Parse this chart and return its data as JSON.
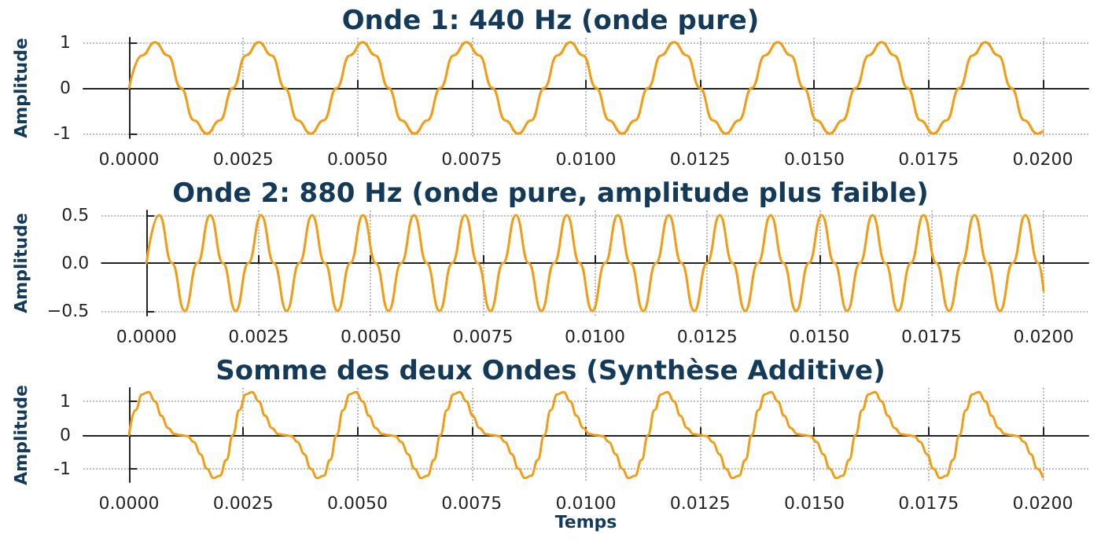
{
  "chart_data": [
    {
      "type": "line",
      "title": "Onde 1: 440 Hz (onde pure)",
      "ylabel": "Amplitude",
      "xlim": [
        -0.001,
        0.021
      ],
      "ylim": [
        -1.1,
        1.1
      ],
      "yticks": [
        -1,
        0,
        1
      ],
      "xticks": [
        {
          "value": 0,
          "label": "0.0000"
        },
        {
          "value": 0.0025,
          "label": "0.0025"
        },
        {
          "value": 0.005,
          "label": "0.0050"
        },
        {
          "value": 0.0075,
          "label": "0.0075"
        },
        {
          "value": 0.01,
          "label": "0.0100"
        },
        {
          "value": 0.0125,
          "label": "0.0125"
        },
        {
          "value": 0.015,
          "label": "0.0150"
        },
        {
          "value": 0.0175,
          "label": "0.0175"
        },
        {
          "value": 0.02,
          "label": "0.0200"
        }
      ],
      "grid": true,
      "marker": "none",
      "line_style": "solid",
      "x": [
        0,
        0.000284,
        0.000568,
        0.000852,
        0.001136,
        0.00142,
        0.001704,
        0.001988,
        0.002272,
        0.002556,
        0.00284,
        0.003124,
        0.003408,
        0.003692,
        0.003976,
        0.00426,
        0.004544,
        0.004828,
        0.005112,
        0.005396,
        0.00568,
        0.005964,
        0.006248,
        0.006532,
        0.006816,
        0.0071,
        0.007384,
        0.007668,
        0.007952,
        0.008236,
        0.00852,
        0.008804,
        0.009088,
        0.009372,
        0.009656,
        0.00994,
        0.010224,
        0.010508,
        0.010792,
        0.011076,
        0.01136,
        0.011644,
        0.011928,
        0.012212,
        0.012496,
        0.01278,
        0.013064,
        0.013348,
        0.013632,
        0.013916,
        0.0142,
        0.014484,
        0.014768,
        0.015052,
        0.015336,
        0.01562,
        0.015904,
        0.016188,
        0.016472,
        0.016756,
        0.01704,
        0.017324,
        0.017608,
        0.017892,
        0.018176,
        0.01846,
        0.018744,
        0.019028,
        0.019312,
        0.019596,
        0.01988,
        0.02
      ],
      "series": [
        {
          "color": "#f39c12",
          "values": [
            0,
            0.71,
            1,
            0.71,
            0,
            -0.71,
            -1,
            -0.71,
            0,
            0.71,
            1,
            0.71,
            0,
            -0.71,
            -1,
            -0.71,
            0,
            0.71,
            1,
            0.71,
            0,
            -0.71,
            -1,
            -0.71,
            0,
            0.71,
            1,
            0.71,
            0,
            -0.71,
            -1,
            -0.71,
            0,
            0.71,
            1,
            0.71,
            0,
            -0.71,
            -1,
            -0.71,
            0,
            0.71,
            1,
            0.71,
            0,
            -0.71,
            -1,
            -0.71,
            0,
            0.71,
            1,
            0.71,
            0,
            -0.71,
            -1,
            -0.71,
            0,
            0.71,
            1,
            0.71,
            0,
            -0.71,
            -1,
            -0.71,
            0,
            0.71,
            1,
            0.71,
            0,
            -0.71,
            -1,
            -0.95
          ]
        }
      ]
    },
    {
      "type": "line",
      "title": "Onde 2: 880 Hz (onde pure, amplitude plus faible)",
      "ylabel": "Amplitude",
      "xlim": [
        -0.001,
        0.021
      ],
      "ylim": [
        -0.55,
        0.55
      ],
      "yticks": [
        {
          "value": -0.5,
          "label": "−0.5"
        },
        {
          "value": 0,
          "label": "0.0"
        },
        {
          "value": 0.5,
          "label": "0.5"
        }
      ],
      "xticks": [
        {
          "value": 0,
          "label": "0.0000"
        },
        {
          "value": 0.0025,
          "label": "0.0025"
        },
        {
          "value": 0.005,
          "label": "0.0050"
        },
        {
          "value": 0.0075,
          "label": "0.0075"
        },
        {
          "value": 0.01,
          "label": "0.0100"
        },
        {
          "value": 0.0125,
          "label": "0.0125"
        },
        {
          "value": 0.015,
          "label": "0.0150"
        },
        {
          "value": 0.0175,
          "label": "0.0175"
        },
        {
          "value": 0.02,
          "label": "0.0200"
        }
      ],
      "grid": true,
      "marker": "none",
      "line_style": "solid",
      "x": [
        0,
        0.000284,
        0.000568,
        0.000852,
        0.001136,
        0.00142,
        0.001704,
        0.001988,
        0.002272,
        0.002556,
        0.00284,
        0.003124,
        0.003408,
        0.003692,
        0.003976,
        0.00426,
        0.004544,
        0.004828,
        0.005112,
        0.005396,
        0.00568,
        0.005964,
        0.006248,
        0.006532,
        0.006816,
        0.0071,
        0.007384,
        0.007668,
        0.007952,
        0.008236,
        0.00852,
        0.008804,
        0.009088,
        0.009372,
        0.009656,
        0.00994,
        0.010224,
        0.010508,
        0.010792,
        0.011076,
        0.01136,
        0.011644,
        0.011928,
        0.012212,
        0.012496,
        0.01278,
        0.013064,
        0.013348,
        0.013632,
        0.013916,
        0.0142,
        0.014484,
        0.014768,
        0.015052,
        0.015336,
        0.01562,
        0.015904,
        0.016188,
        0.016472,
        0.016756,
        0.01704,
        0.017324,
        0.017608,
        0.017892,
        0.018176,
        0.01846,
        0.018744,
        0.019028,
        0.019312,
        0.019596,
        0.01988,
        0.02
      ],
      "series": [
        {
          "color": "#f39c12",
          "values": [
            0,
            0.5,
            0,
            -0.5,
            0,
            0.5,
            0,
            -0.5,
            0,
            0.5,
            0,
            -0.5,
            0,
            0.5,
            0,
            -0.5,
            0,
            0.5,
            0,
            -0.5,
            0,
            0.5,
            0,
            -0.5,
            0,
            0.5,
            0,
            -0.5,
            0,
            0.5,
            0,
            -0.5,
            0,
            0.5,
            0,
            -0.5,
            0,
            0.5,
            0,
            -0.5,
            0,
            0.5,
            0,
            -0.5,
            0,
            0.5,
            0,
            -0.5,
            0,
            0.5,
            0,
            -0.5,
            0,
            0.5,
            0,
            -0.5,
            0,
            0.5,
            0,
            -0.5,
            0,
            0.5,
            0,
            -0.5,
            0,
            0.5,
            0,
            -0.5,
            0,
            0.5,
            0,
            -0.29
          ]
        }
      ]
    },
    {
      "type": "line",
      "title": "Somme des deux Ondes (Synthèse Additive)",
      "ylabel": "Amplitude",
      "xlabel": "Temps",
      "xlim": [
        -0.001,
        0.021
      ],
      "ylim": [
        -1.4,
        1.4
      ],
      "yticks": [
        -1,
        0,
        1
      ],
      "xticks": [
        {
          "value": 0,
          "label": "0.0000"
        },
        {
          "value": 0.0025,
          "label": "0.0025"
        },
        {
          "value": 0.005,
          "label": "0.0050"
        },
        {
          "value": 0.0075,
          "label": "0.0075"
        },
        {
          "value": 0.01,
          "label": "0.0100"
        },
        {
          "value": 0.0125,
          "label": "0.0125"
        },
        {
          "value": 0.015,
          "label": "0.0150"
        },
        {
          "value": 0.0175,
          "label": "0.0175"
        },
        {
          "value": 0.02,
          "label": "0.0200"
        }
      ],
      "grid": true,
      "marker": "none",
      "line_style": "solid",
      "x": [
        0,
        0.000142,
        0.000284,
        0.000426,
        0.000568,
        0.00071,
        0.000852,
        0.000994,
        0.001136,
        0.001278,
        0.00142,
        0.001562,
        0.001704,
        0.001846,
        0.001988,
        0.00213,
        0.002272,
        0.002414,
        0.002556,
        0.002698,
        0.00284,
        0.002982,
        0.003124,
        0.003266,
        0.003408,
        0.00355,
        0.003692,
        0.003834,
        0.003976,
        0.004118,
        0.00426,
        0.004402,
        0.004544,
        0.004686,
        0.004828,
        0.00497,
        0.005112,
        0.005254,
        0.005396,
        0.005538,
        0.00568,
        0.005822,
        0.005964,
        0.006106,
        0.006248,
        0.00639,
        0.006532,
        0.006674,
        0.006816,
        0.006958,
        0.0071,
        0.007242,
        0.007384,
        0.007526,
        0.007668,
        0.00781,
        0.007952,
        0.008094,
        0.008236,
        0.008378,
        0.00852,
        0.008662,
        0.008804,
        0.008946,
        0.009088,
        0.00923,
        0.009372,
        0.009514,
        0.009656,
        0.009798,
        0.00994,
        0.010082,
        0.010224,
        0.010366,
        0.010508,
        0.01065,
        0.010792,
        0.010934,
        0.011076,
        0.011218,
        0.01136,
        0.011502,
        0.011644,
        0.011786,
        0.011928,
        0.01207,
        0.012212,
        0.012354,
        0.012496,
        0.012638,
        0.01278,
        0.012922,
        0.013064,
        0.013206,
        0.013348,
        0.01349,
        0.013632,
        0.013774,
        0.013916,
        0.014058,
        0.0142,
        0.014342,
        0.014484,
        0.014626,
        0.014768,
        0.01491,
        0.015052,
        0.015194,
        0.015336,
        0.015478,
        0.01562,
        0.015762,
        0.015904,
        0.016046,
        0.016188,
        0.01633,
        0.016472,
        0.016614,
        0.016756,
        0.016898,
        0.01704,
        0.017182,
        0.017324,
        0.017466,
        0.017608,
        0.01775,
        0.017892,
        0.018034,
        0.018176,
        0.018318,
        0.01846,
        0.018602,
        0.018744,
        0.018886,
        0.019028,
        0.01917,
        0.019312,
        0.019454,
        0.019596,
        0.019738,
        0.01988,
        0.02
      ],
      "series": [
        {
          "color": "#f39c12",
          "values": [
            0,
            0.74,
            1.21,
            1.28,
            1,
            0.57,
            0.21,
            0.03,
            0,
            -0.03,
            -0.21,
            -0.57,
            -1,
            -1.28,
            -1.21,
            -0.74,
            0,
            0.74,
            1.21,
            1.28,
            1,
            0.57,
            0.21,
            0.03,
            0,
            -0.03,
            -0.21,
            -0.57,
            -1,
            -1.28,
            -1.21,
            -0.74,
            0,
            0.74,
            1.21,
            1.28,
            1,
            0.57,
            0.21,
            0.03,
            0,
            -0.03,
            -0.21,
            -0.57,
            -1,
            -1.28,
            -1.21,
            -0.74,
            0,
            0.74,
            1.21,
            1.28,
            1,
            0.57,
            0.21,
            0.03,
            0,
            -0.03,
            -0.21,
            -0.57,
            -1,
            -1.28,
            -1.21,
            -0.74,
            0,
            0.74,
            1.21,
            1.28,
            1,
            0.57,
            0.21,
            0.03,
            0,
            -0.03,
            -0.21,
            -0.57,
            -1,
            -1.28,
            -1.21,
            -0.74,
            0,
            0.74,
            1.21,
            1.28,
            1,
            0.57,
            0.21,
            0.03,
            0,
            -0.03,
            -0.21,
            -0.57,
            -1,
            -1.28,
            -1.21,
            -0.74,
            0,
            0.74,
            1.21,
            1.28,
            1,
            0.57,
            0.21,
            0.03,
            0,
            -0.03,
            -0.21,
            -0.57,
            -1,
            -1.28,
            -1.21,
            -0.74,
            0,
            0.74,
            1.21,
            1.28,
            1,
            0.57,
            0.21,
            0.03,
            0,
            -0.03,
            -0.21,
            -0.57,
            -1,
            -1.28,
            -1.21,
            -0.74,
            0,
            0.74,
            1.21,
            1.28,
            1,
            0.57,
            0.21,
            0.03,
            0,
            -0.03,
            -0.21,
            -0.57,
            -1,
            -1.25
          ]
        }
      ]
    }
  ]
}
